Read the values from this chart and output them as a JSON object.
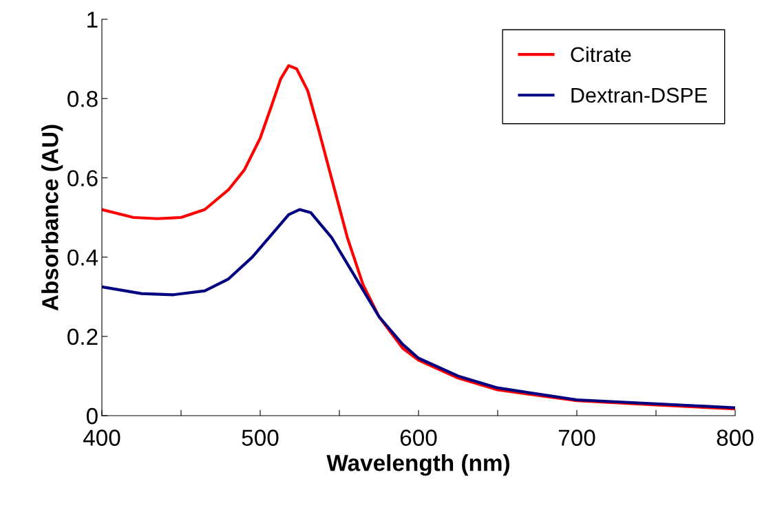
{
  "chart_data": {
    "type": "line",
    "xlabel": "Wavelength (nm)",
    "ylabel": "Absorbance (AU)",
    "xlim": [
      400,
      800
    ],
    "ylim": [
      0,
      1
    ],
    "xticks": [
      400,
      {
        "value": 450,
        "label": null
      },
      500,
      {
        "value": 550,
        "label": null
      },
      600,
      {
        "value": 650,
        "label": null
      },
      700,
      {
        "value": 750,
        "label": null
      },
      800
    ],
    "yticks": [
      0,
      0.2,
      0.4,
      0.6,
      0.8,
      1
    ],
    "grid": false,
    "legend": "top right",
    "marker": "none",
    "line_style": "solid",
    "series": [
      {
        "name": "Citrate",
        "color": "#ff0000",
        "x": [
          400,
          420,
          435,
          450,
          465,
          480,
          490,
          500,
          507,
          513,
          518,
          523,
          530,
          537,
          545,
          555,
          565,
          575,
          590,
          600,
          625,
          650,
          700,
          750,
          800
        ],
        "values": [
          0.52,
          0.5,
          0.497,
          0.5,
          0.52,
          0.57,
          0.62,
          0.7,
          0.78,
          0.85,
          0.883,
          0.875,
          0.82,
          0.72,
          0.6,
          0.45,
          0.33,
          0.25,
          0.17,
          0.14,
          0.095,
          0.065,
          0.038,
          0.027,
          0.017
        ]
      },
      {
        "name": "Dextran-DSPE",
        "color": "#000080",
        "x": [
          400,
          425,
          445,
          465,
          480,
          495,
          510,
          518,
          525,
          532,
          545,
          560,
          575,
          590,
          600,
          625,
          650,
          700,
          750,
          800
        ],
        "values": [
          0.325,
          0.308,
          0.305,
          0.315,
          0.345,
          0.4,
          0.47,
          0.507,
          0.52,
          0.512,
          0.45,
          0.35,
          0.25,
          0.18,
          0.145,
          0.1,
          0.07,
          0.04,
          0.03,
          0.02
        ]
      }
    ]
  }
}
